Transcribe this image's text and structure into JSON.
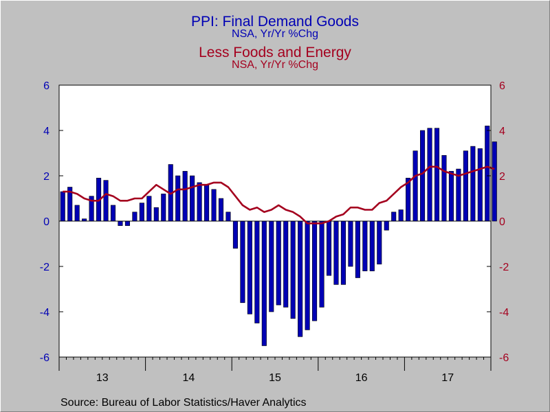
{
  "title": "PPI: Final Demand Goods",
  "title_sub": "NSA, Yr/Yr %Chg",
  "title2": "Less Foods and Energy",
  "title2_sub": "NSA, Yr/Yr %Chg",
  "source": "Source:  Bureau of Labor Statistics/Haver Analytics",
  "colors": {
    "bar": "#0000b4",
    "line": "#a4001e",
    "background": "#c0c0c0",
    "plot": "#ffffff"
  },
  "chart_data": {
    "type": "bar",
    "x_axis": {
      "tick_labels": [
        "13",
        "14",
        "15",
        "16",
        "17"
      ],
      "start": "2013-01",
      "end": "2017-12"
    },
    "left_axis": {
      "min": -6,
      "max": 6,
      "ticks": [
        6,
        4,
        2,
        0,
        -2,
        -4,
        -6
      ]
    },
    "right_axis": {
      "min": -6,
      "max": 6,
      "ticks": [
        6,
        4,
        2,
        0,
        -2,
        -4,
        -6
      ]
    },
    "grid": false,
    "series": [
      {
        "type": "bar",
        "axis": "left",
        "values": [
          1.3,
          1.5,
          0.7,
          0.1,
          1.1,
          1.9,
          1.8,
          0.7,
          -0.2,
          -0.2,
          0.4,
          0.8,
          1.1,
          0.6,
          1.2,
          2.5,
          2.0,
          2.2,
          2.0,
          1.7,
          1.6,
          1.4,
          1.0,
          0.4,
          -1.2,
          -3.6,
          -4.1,
          -4.5,
          -5.5,
          -4.0,
          -3.7,
          -3.8,
          -4.3,
          -5.1,
          -4.8,
          -4.4,
          -3.8,
          -2.4,
          -2.8,
          -2.8,
          -2.0,
          -2.5,
          -2.2,
          -2.2,
          -1.9,
          -0.4,
          0.4,
          0.5,
          1.9,
          3.1,
          4.0,
          4.1,
          4.1,
          2.9,
          2.2,
          2.3,
          3.1,
          3.3,
          3.2,
          4.2,
          3.5
        ]
      },
      {
        "type": "line",
        "axis": "right",
        "values": [
          1.3,
          1.3,
          1.2,
          1.0,
          0.9,
          0.9,
          1.2,
          1.1,
          0.9,
          0.9,
          1.0,
          1.0,
          1.3,
          1.6,
          1.4,
          1.2,
          1.4,
          1.4,
          1.5,
          1.6,
          1.6,
          1.7,
          1.7,
          1.5,
          1.1,
          0.7,
          0.5,
          0.6,
          0.4,
          0.5,
          0.7,
          0.5,
          0.4,
          0.2,
          -0.1,
          -0.1,
          -0.1,
          0.0,
          0.2,
          0.3,
          0.6,
          0.6,
          0.5,
          0.5,
          0.8,
          0.9,
          1.2,
          1.5,
          1.7,
          2.0,
          2.1,
          2.4,
          2.4,
          2.2,
          2.1,
          2.0,
          2.1,
          2.2,
          2.3,
          2.4,
          2.3
        ]
      }
    ]
  }
}
